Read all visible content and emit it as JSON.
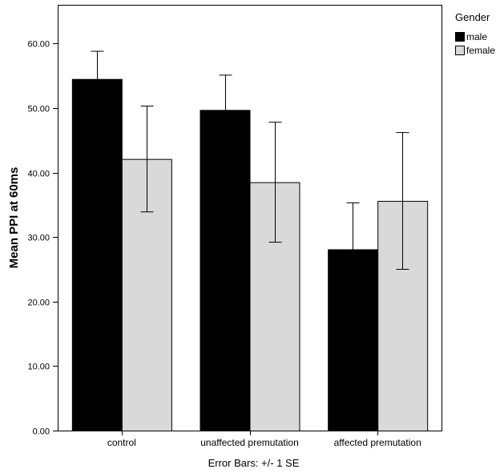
{
  "chart_data": {
    "type": "bar",
    "title": "",
    "xlabel": "",
    "ylabel": "Mean PPI at 60ms",
    "ylim": [
      0,
      66
    ],
    "yticks": [
      "0.00",
      "10.00",
      "20.00",
      "30.00",
      "40.00",
      "50.00",
      "60.00"
    ],
    "ytick_values": [
      0,
      10,
      20,
      30,
      40,
      50,
      60
    ],
    "categories": [
      "control",
      "unaffected premutation",
      "affected premutation"
    ],
    "series": [
      {
        "name": "male",
        "color": "#000000",
        "values": [
          54.5,
          49.7,
          28.1
        ],
        "error_low": [
          50.3,
          44.5,
          21.0
        ],
        "error_high": [
          58.8,
          55.1,
          35.3
        ]
      },
      {
        "name": "female",
        "color": "#d9d9d9",
        "values": [
          42.1,
          38.5,
          35.6
        ],
        "error_low": [
          33.9,
          29.2,
          25.0
        ],
        "error_high": [
          50.3,
          47.8,
          46.2
        ]
      }
    ],
    "legend": {
      "title": "Gender",
      "placement": "top-right"
    },
    "grid": false,
    "footnote": "Error Bars: +/- 1 SE"
  }
}
